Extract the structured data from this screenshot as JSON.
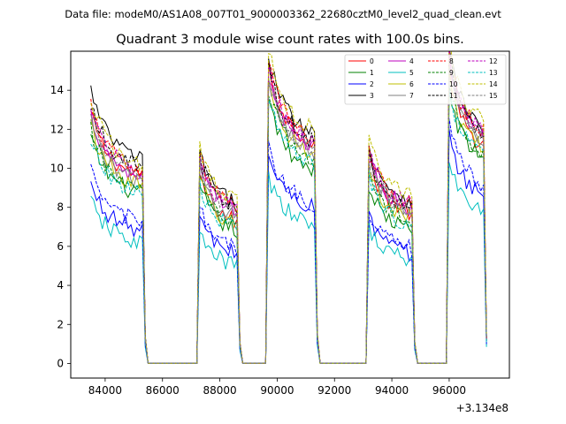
{
  "chart_data": {
    "type": "line",
    "suptitle": "Data file: modeM0/AS1A08_007T01_9000003362_22680cztM0_level2_quad_clean.evt",
    "title": "Quadrant 3 module wise count rates with 100.0s bins.",
    "xlabel": "",
    "ylabel": "",
    "x_offset_label": "+3.134e8",
    "xlim": [
      82800,
      98100
    ],
    "ylim": [
      -0.75,
      16.0
    ],
    "x_ticks": [
      84000,
      86000,
      88000,
      90000,
      92000,
      94000,
      96000
    ],
    "x_tick_labels": [
      "84000",
      "86000",
      "88000",
      "90000",
      "92000",
      "94000",
      "96000"
    ],
    "y_ticks": [
      0,
      2,
      4,
      6,
      8,
      10,
      12,
      14
    ],
    "y_tick_labels": [
      "0",
      "2",
      "4",
      "6",
      "8",
      "10",
      "12",
      "14"
    ],
    "grid": false,
    "legend_position": "top-right",
    "bin_width": 100,
    "segments": [
      {
        "t_start": 83500,
        "t_end": 85300
      },
      {
        "t_start": 87300,
        "t_end": 88600
      },
      {
        "t_start": 89700,
        "t_end": 91300
      },
      {
        "t_start": 93200,
        "t_end": 94700
      },
      {
        "t_start": 96000,
        "t_end": 97300
      }
    ],
    "gap_level": 0,
    "series": [
      {
        "name": "0",
        "color": "#ff0000",
        "dash": "solid",
        "levels": [
          10.5,
          8.0,
          12.5,
          8.5,
          12.2
        ]
      },
      {
        "name": "1",
        "color": "#008000",
        "dash": "solid",
        "levels": [
          9.5,
          7.5,
          11.0,
          7.5,
          11.5
        ]
      },
      {
        "name": "2",
        "color": "#0000ff",
        "dash": "solid",
        "levels": [
          7.5,
          6.2,
          8.8,
          6.2,
          9.5
        ]
      },
      {
        "name": "3",
        "color": "#000000",
        "dash": "solid",
        "levels": [
          11.5,
          9.0,
          13.0,
          9.2,
          13.2
        ]
      },
      {
        "name": "4",
        "color": "#bf00bf",
        "dash": "solid",
        "levels": [
          10.5,
          8.5,
          12.2,
          8.8,
          12.8
        ]
      },
      {
        "name": "5",
        "color": "#00bfbf",
        "dash": "solid",
        "levels": [
          6.8,
          5.5,
          7.8,
          5.8,
          8.5
        ]
      },
      {
        "name": "6",
        "color": "#bfbf00",
        "dash": "solid",
        "levels": [
          10.0,
          7.8,
          11.8,
          8.2,
          12.0
        ]
      },
      {
        "name": "7",
        "color": "#808080",
        "dash": "solid",
        "levels": [
          10.2,
          8.2,
          12.0,
          8.5,
          12.5
        ]
      },
      {
        "name": "8",
        "color": "#ff0000",
        "dash": "dashed",
        "levels": [
          10.8,
          8.8,
          12.8,
          9.0,
          13.0
        ]
      },
      {
        "name": "9",
        "color": "#008000",
        "dash": "dashed",
        "levels": [
          9.8,
          7.8,
          11.5,
          8.0,
          11.8
        ]
      },
      {
        "name": "10",
        "color": "#0000ff",
        "dash": "dashed",
        "levels": [
          8.0,
          6.5,
          9.0,
          6.5,
          10.0
        ]
      },
      {
        "name": "11",
        "color": "#000000",
        "dash": "dashed",
        "levels": [
          11.0,
          8.8,
          12.5,
          8.8,
          13.0
        ]
      },
      {
        "name": "12",
        "color": "#bf00bf",
        "dash": "dashed",
        "levels": [
          10.8,
          8.6,
          12.4,
          9.0,
          12.9
        ]
      },
      {
        "name": "13",
        "color": "#00bfbf",
        "dash": "dashed",
        "levels": [
          9.5,
          7.6,
          11.2,
          7.8,
          11.6
        ]
      },
      {
        "name": "14",
        "color": "#bfbf00",
        "dash": "dashed",
        "levels": [
          11.2,
          9.2,
          13.2,
          9.5,
          13.5
        ]
      },
      {
        "name": "15",
        "color": "#808080",
        "dash": "dashed",
        "levels": [
          10.4,
          8.4,
          12.0,
          8.6,
          12.6
        ]
      }
    ]
  }
}
